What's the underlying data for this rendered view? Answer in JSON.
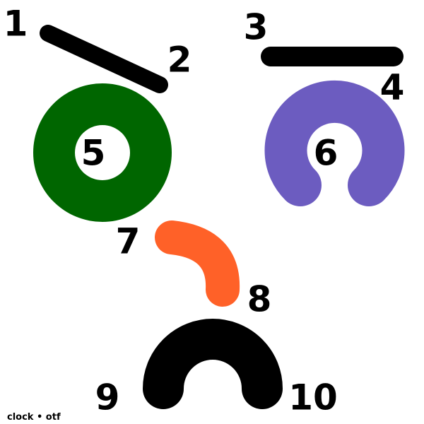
{
  "figure": {
    "background": "#ffffff",
    "stroke_color": "#000000",
    "labels": [
      "1",
      "2",
      "3",
      "4",
      "5",
      "6",
      "7",
      "8",
      "9",
      "10"
    ],
    "shapes": [
      {
        "name": "left-brow-stroke",
        "color": "#000000"
      },
      {
        "name": "right-brow-stroke",
        "color": "#000000"
      },
      {
        "name": "left-eye-ring",
        "color": "#006600"
      },
      {
        "name": "right-eye-horseshoe",
        "color": "#6c5cc0"
      },
      {
        "name": "nose-arc",
        "color": "#ff6128"
      },
      {
        "name": "mouth-arch",
        "color": "#000000"
      }
    ],
    "footer": "clock • otf"
  }
}
